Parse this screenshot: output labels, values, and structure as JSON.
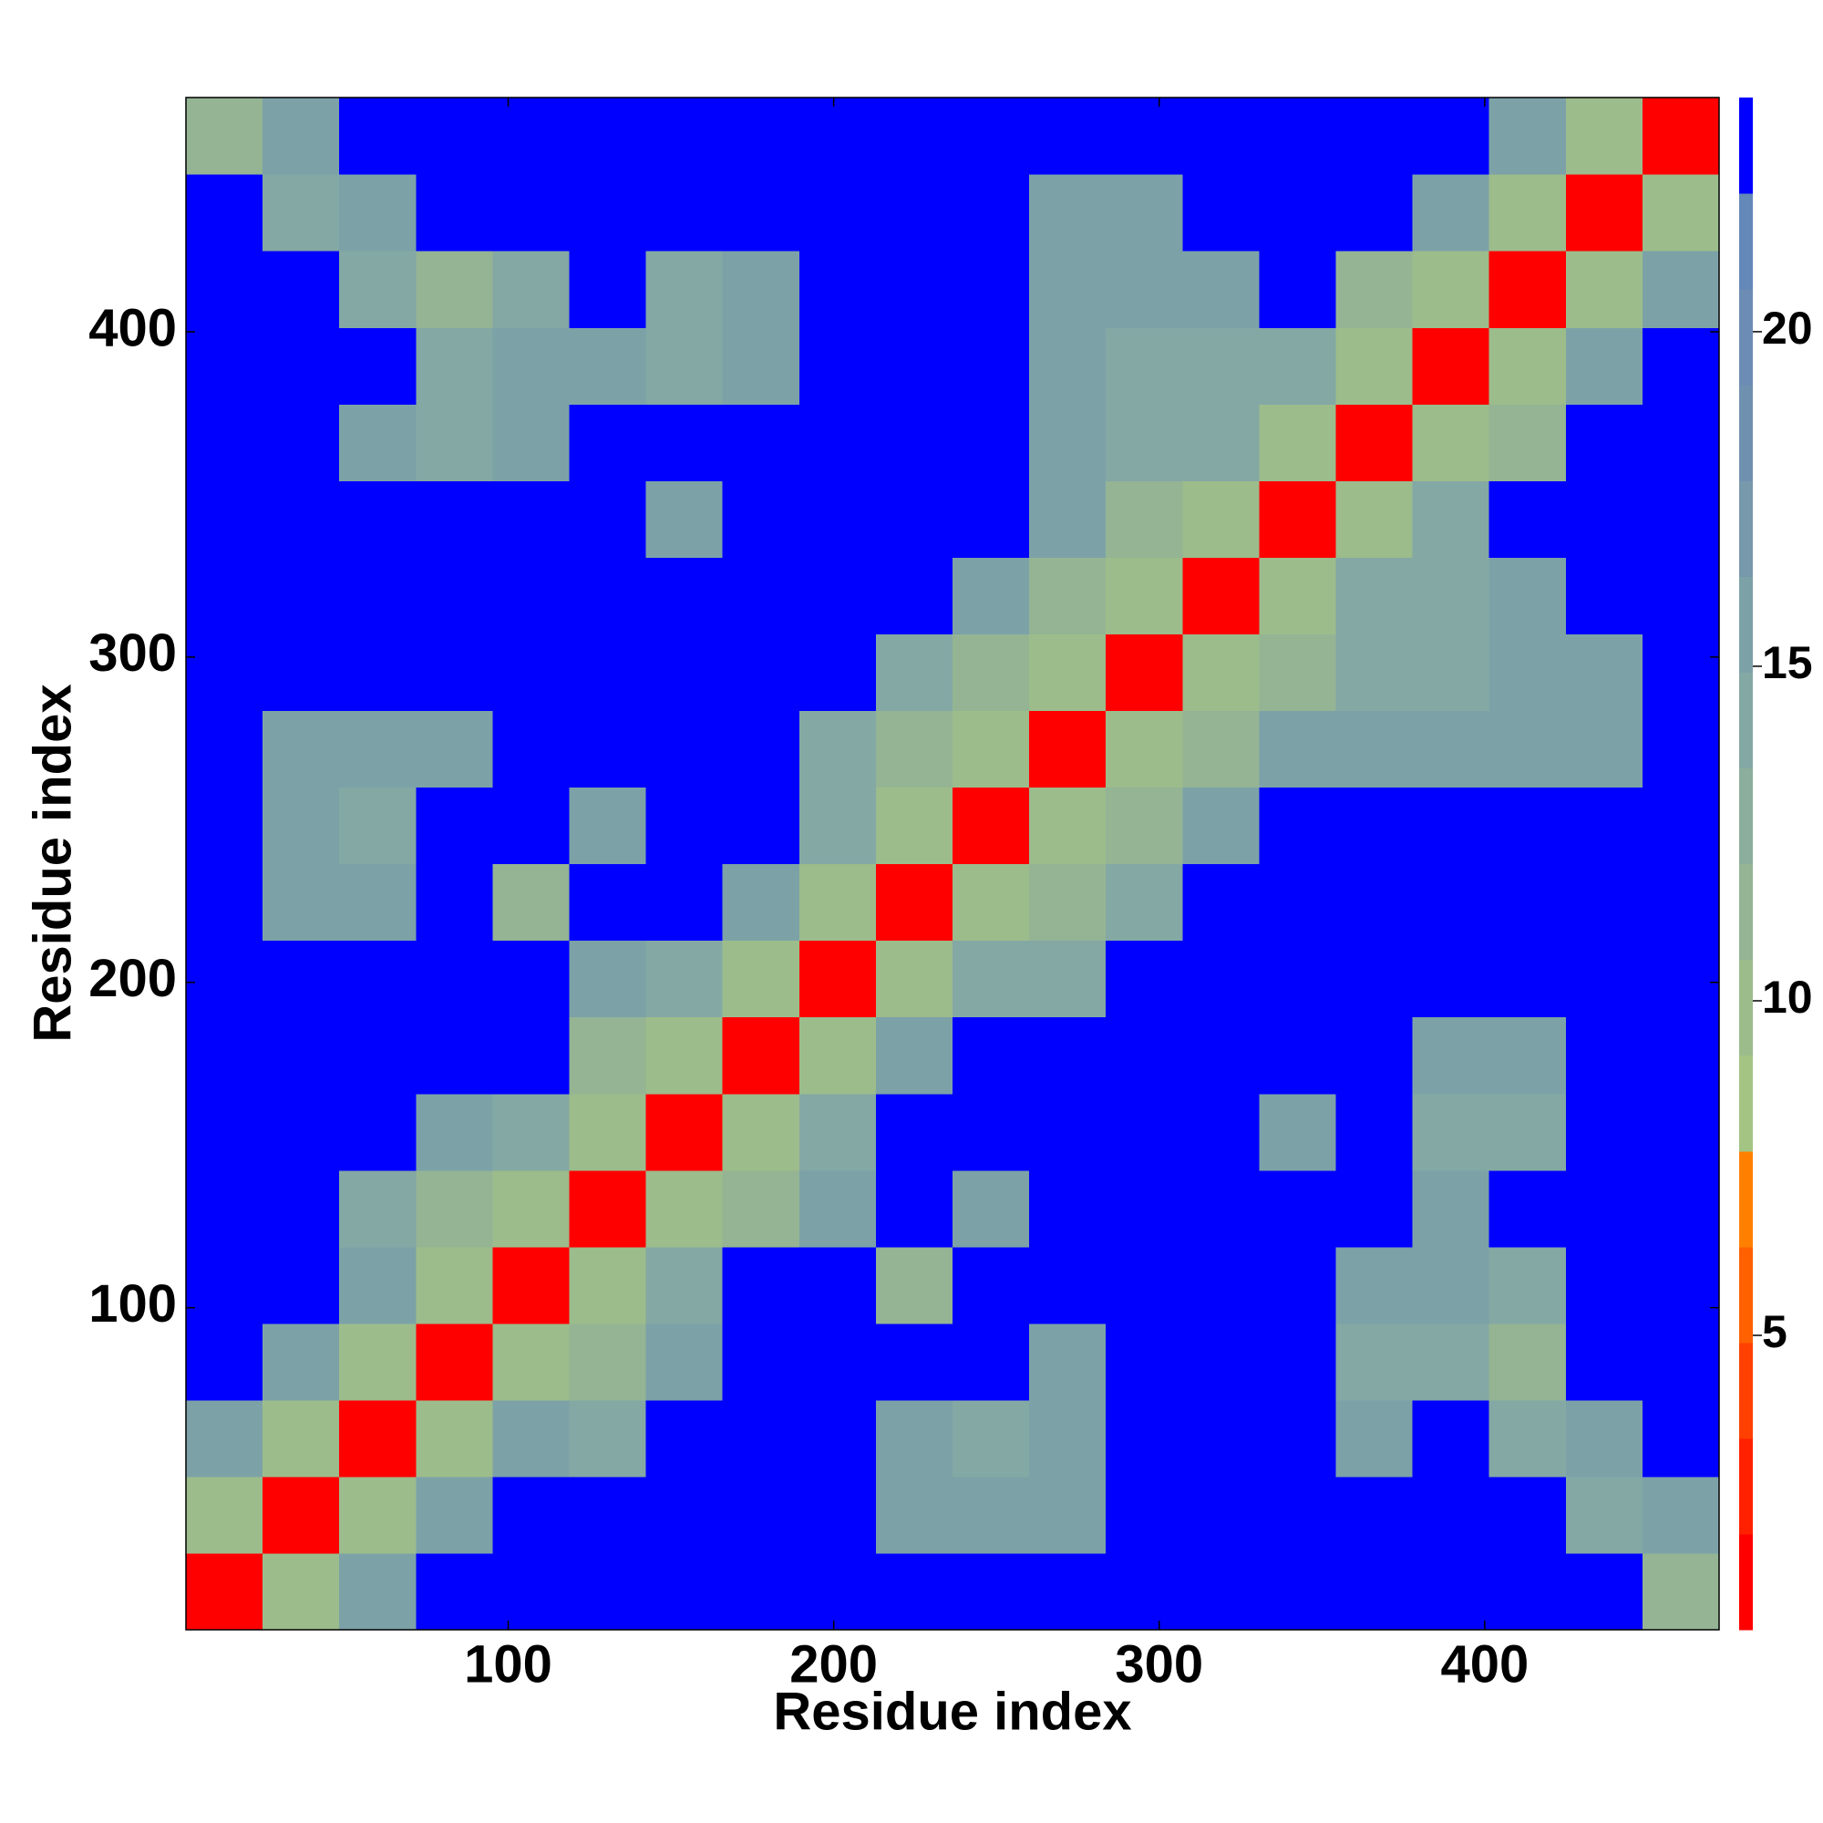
{
  "chart_data": {
    "type": "heatmap",
    "xlabel": "Residue index",
    "ylabel": "Residue index",
    "xlim": [
      1,
      472
    ],
    "ylim": [
      1,
      472
    ],
    "xticks": [
      100,
      200,
      300,
      400
    ],
    "yticks": [
      100,
      200,
      300,
      400
    ],
    "z": [
      [
        2,
        10,
        16,
        23,
        23,
        23,
        23,
        23,
        23,
        23,
        23,
        23,
        23,
        23,
        23,
        23,
        23,
        23,
        23,
        12
      ],
      [
        10,
        2,
        10,
        16,
        23,
        23,
        23,
        23,
        23,
        16,
        16,
        16,
        23,
        23,
        23,
        23,
        23,
        23,
        14,
        16
      ],
      [
        16,
        10,
        2,
        10,
        16,
        14,
        23,
        23,
        23,
        16,
        14,
        16,
        23,
        23,
        23,
        16,
        23,
        14,
        16,
        23
      ],
      [
        23,
        16,
        10,
        2,
        10,
        12,
        16,
        23,
        23,
        23,
        23,
        16,
        23,
        23,
        23,
        14,
        14,
        12,
        23,
        23
      ],
      [
        23,
        23,
        16,
        10,
        2,
        10,
        14,
        23,
        23,
        12,
        23,
        23,
        23,
        23,
        23,
        16,
        16,
        14,
        23,
        23
      ],
      [
        23,
        23,
        14,
        12,
        10,
        2,
        10,
        12,
        16,
        23,
        16,
        23,
        23,
        23,
        23,
        23,
        16,
        23,
        23,
        23
      ],
      [
        23,
        23,
        23,
        16,
        14,
        10,
        2,
        10,
        14,
        23,
        23,
        23,
        23,
        23,
        16,
        23,
        14,
        14,
        23,
        23
      ],
      [
        23,
        23,
        23,
        23,
        23,
        12,
        10,
        2,
        10,
        16,
        23,
        23,
        23,
        23,
        23,
        23,
        16,
        16,
        23,
        23
      ],
      [
        23,
        23,
        23,
        23,
        23,
        16,
        14,
        10,
        2,
        10,
        14,
        14,
        23,
        23,
        23,
        23,
        23,
        23,
        23,
        23
      ],
      [
        23,
        16,
        16,
        23,
        12,
        23,
        23,
        16,
        10,
        2,
        10,
        12,
        14,
        23,
        23,
        23,
        23,
        23,
        23,
        23
      ],
      [
        23,
        16,
        14,
        23,
        23,
        16,
        23,
        23,
        14,
        10,
        2,
        10,
        12,
        16,
        23,
        23,
        23,
        23,
        23,
        23
      ],
      [
        23,
        16,
        16,
        16,
        23,
        23,
        23,
        23,
        14,
        12,
        10,
        2,
        10,
        12,
        16,
        16,
        16,
        16,
        16,
        23
      ],
      [
        23,
        23,
        23,
        23,
        23,
        23,
        23,
        23,
        23,
        14,
        12,
        10,
        2,
        10,
        12,
        14,
        14,
        16,
        16,
        23
      ],
      [
        23,
        23,
        23,
        23,
        23,
        23,
        23,
        23,
        23,
        23,
        16,
        12,
        10,
        2,
        10,
        14,
        14,
        16,
        23,
        23
      ],
      [
        23,
        23,
        23,
        23,
        23,
        23,
        16,
        23,
        23,
        23,
        23,
        16,
        12,
        10,
        2,
        10,
        14,
        23,
        23,
        23
      ],
      [
        23,
        23,
        16,
        14,
        16,
        23,
        23,
        23,
        23,
        23,
        23,
        16,
        14,
        14,
        10,
        2,
        10,
        12,
        23,
        23
      ],
      [
        23,
        23,
        23,
        14,
        16,
        16,
        14,
        16,
        23,
        23,
        23,
        16,
        14,
        14,
        14,
        10,
        2,
        10,
        16,
        23
      ],
      [
        23,
        23,
        14,
        12,
        14,
        23,
        14,
        16,
        23,
        23,
        23,
        16,
        16,
        16,
        23,
        12,
        10,
        2,
        10,
        16
      ],
      [
        23,
        14,
        16,
        23,
        23,
        23,
        23,
        23,
        23,
        23,
        23,
        16,
        16,
        23,
        23,
        23,
        16,
        10,
        2,
        10
      ],
      [
        12,
        16,
        23,
        23,
        23,
        23,
        23,
        23,
        23,
        23,
        23,
        23,
        23,
        23,
        23,
        23,
        23,
        16,
        10,
        2
      ]
    ],
    "colorbar": {
      "lim": [
        0.6,
        23.5
      ],
      "ticks": [
        5,
        10,
        15,
        20
      ],
      "colors": [
        "#ff0000",
        "#ff2000",
        "#ff4000",
        "#ff6000",
        "#ff8000",
        "#a4c484",
        "#9cbc8c",
        "#94b494",
        "#8cae9c",
        "#84a8a4",
        "#7ca2a8",
        "#7898ac",
        "#7090b0",
        "#6c8cb4",
        "#6488b8",
        "#0000ff"
      ]
    }
  }
}
